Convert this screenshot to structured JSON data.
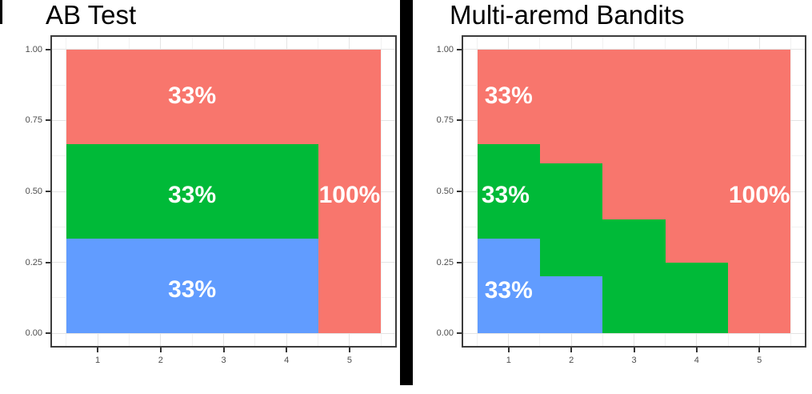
{
  "styles": {
    "panel_border_color": "#3c3c3c",
    "grid_major_color": "#e4e4e4",
    "grid_minor_color": "#f2f2f2",
    "axis_text_color": "#4d4d4d",
    "tick_mark_color": "#333333",
    "annotation_text_color": "#ffffff",
    "title_color": "#000000",
    "divider_color": "#000000"
  },
  "chart_data": [
    {
      "id": "ab-test",
      "type": "area",
      "title": "AB Test",
      "xlabel": "",
      "ylabel": "",
      "xlim": [
        0.25,
        5.75
      ],
      "ylim": [
        -0.05,
        1.05
      ],
      "x_ticks": [
        1,
        2,
        3,
        4,
        5
      ],
      "x_tick_labels": [
        "1",
        "2",
        "3",
        "4",
        "5"
      ],
      "y_ticks": [
        1.0,
        0.75,
        0.5,
        0.25,
        0.0
      ],
      "y_tick_labels": [
        "1.00",
        "0.75",
        "0.50",
        "0.25",
        "0.00"
      ],
      "x_minor": [
        0.5,
        1.5,
        2.5,
        3.5,
        4.5,
        5.5
      ],
      "y_minor": [
        0.125,
        0.375,
        0.625,
        0.875
      ],
      "grid": true,
      "legend": "none",
      "series": [
        {
          "name": "red",
          "color": "#F8766D",
          "rects": [
            {
              "x0": 0.5,
              "x1": 5.5,
              "y0": 0.0,
              "y1": 1.0
            }
          ]
        },
        {
          "name": "green",
          "color": "#00BA38",
          "rects": [
            {
              "x0": 0.5,
              "x1": 4.5,
              "y0": 0.0,
              "y1": 0.667
            }
          ]
        },
        {
          "name": "blue",
          "color": "#619CFF",
          "rects": [
            {
              "x0": 0.5,
              "x1": 4.5,
              "y0": 0.0,
              "y1": 0.333
            }
          ]
        }
      ],
      "annotations": [
        {
          "text": "33%",
          "x": 2.5,
          "y": 0.835
        },
        {
          "text": "33%",
          "x": 2.5,
          "y": 0.487
        },
        {
          "text": "33%",
          "x": 2.5,
          "y": 0.152
        },
        {
          "text": "100%",
          "x": 5.0,
          "y": 0.487
        }
      ]
    },
    {
      "id": "multi-armed-bandits",
      "type": "area",
      "title": "Multi-aremd Bandits",
      "xlabel": "",
      "ylabel": "",
      "xlim": [
        0.25,
        5.75
      ],
      "ylim": [
        -0.05,
        1.05
      ],
      "x_ticks": [
        1,
        2,
        3,
        4,
        5
      ],
      "x_tick_labels": [
        "1",
        "2",
        "3",
        "4",
        "5"
      ],
      "y_ticks": [
        1.0,
        0.75,
        0.5,
        0.25,
        0.0
      ],
      "y_tick_labels": [
        "1.00",
        "0.75",
        "0.50",
        "0.25",
        "0.00"
      ],
      "x_minor": [
        0.5,
        1.5,
        2.5,
        3.5,
        4.5,
        5.5
      ],
      "y_minor": [
        0.125,
        0.375,
        0.625,
        0.875
      ],
      "grid": true,
      "legend": "none",
      "series": [
        {
          "name": "red",
          "color": "#F8766D",
          "rects": [
            {
              "x0": 0.5,
              "x1": 5.5,
              "y0": 0.0,
              "y1": 1.0
            }
          ]
        },
        {
          "name": "green",
          "color": "#00BA38",
          "rects": [
            {
              "x0": 0.5,
              "x1": 1.5,
              "y0": 0.0,
              "y1": 0.667
            },
            {
              "x0": 1.5,
              "x1": 2.5,
              "y0": 0.0,
              "y1": 0.6
            },
            {
              "x0": 2.5,
              "x1": 3.5,
              "y0": 0.0,
              "y1": 0.4
            },
            {
              "x0": 3.5,
              "x1": 4.5,
              "y0": 0.0,
              "y1": 0.25
            }
          ]
        },
        {
          "name": "blue",
          "color": "#619CFF",
          "rects": [
            {
              "x0": 0.5,
              "x1": 1.5,
              "y0": 0.0,
              "y1": 0.333
            },
            {
              "x0": 1.5,
              "x1": 2.5,
              "y0": 0.0,
              "y1": 0.2
            }
          ]
        }
      ],
      "annotations": [
        {
          "text": "33%",
          "x": 1.0,
          "y": 0.835
        },
        {
          "text": "33%",
          "x": 0.95,
          "y": 0.487
        },
        {
          "text": "33%",
          "x": 1.0,
          "y": 0.15
        },
        {
          "text": "100%",
          "x": 5.0,
          "y": 0.487
        }
      ]
    }
  ]
}
